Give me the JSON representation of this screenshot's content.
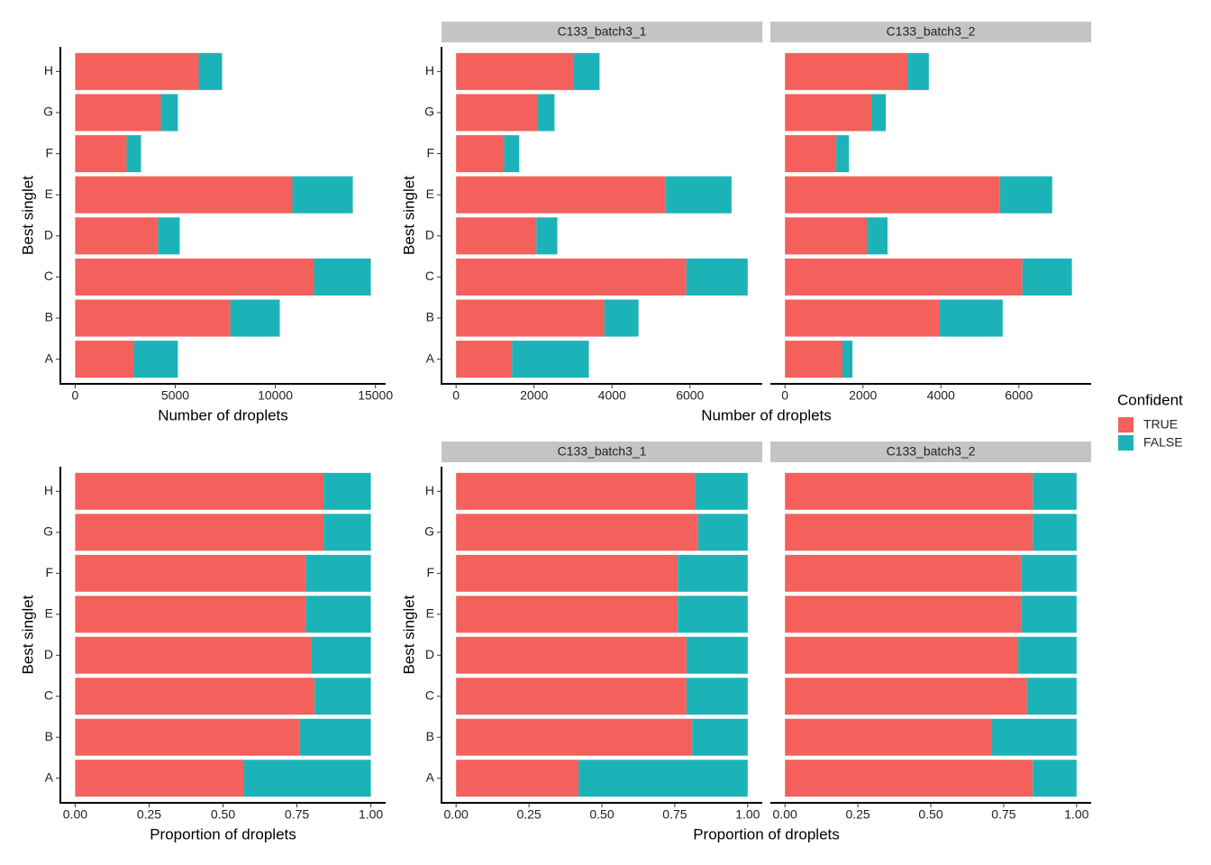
{
  "chart_data": [
    {
      "type": "bar",
      "orientation": "horizontal",
      "stacked": true,
      "categories": [
        "A",
        "B",
        "C",
        "D",
        "E",
        "F",
        "G",
        "H"
      ],
      "series": [
        {
          "name": "TRUE",
          "color": "#f4605c",
          "values": [
            2930,
            7750,
            11930,
            4140,
            10850,
            2570,
            4280,
            6170
          ]
        },
        {
          "name": "FALSE",
          "color": "#1cb3b8",
          "values": [
            2200,
            2470,
            2840,
            1080,
            3020,
            720,
            850,
            1170
          ]
        }
      ],
      "xlabel": "Number of droplets",
      "ylabel": "Best singlet",
      "xlim": [
        -740,
        15510
      ],
      "xticks": [
        0,
        5000,
        10000,
        15000
      ]
    },
    {
      "type": "bar",
      "orientation": "horizontal",
      "stacked": true,
      "categories": [
        "A",
        "B",
        "C",
        "D",
        "E",
        "F",
        "G",
        "H"
      ],
      "facets": [
        {
          "title": "C133_batch3_1",
          "series": [
            {
              "name": "TRUE",
              "color": "#f4605c",
              "values": [
                1435,
                3800,
                5905,
                2060,
                5375,
                1230,
                2085,
                3010
              ]
            },
            {
              "name": "FALSE",
              "color": "#1cb3b8",
              "values": [
                1970,
                880,
                1575,
                535,
                1690,
                390,
                440,
                670
              ]
            }
          ]
        },
        {
          "title": "C133_batch3_2",
          "series": [
            {
              "name": "TRUE",
              "color": "#f4605c",
              "values": [
                1475,
                3970,
                6090,
                2100,
                5515,
                1315,
                2215,
                3140
              ]
            },
            {
              "name": "FALSE",
              "color": "#1cb3b8",
              "values": [
                255,
                1615,
                1270,
                530,
                1340,
                325,
                370,
                550
              ]
            }
          ]
        }
      ],
      "xlabel": "Number of droplets",
      "ylabel": "Best singlet",
      "xlim": [
        -374,
        7854
      ],
      "xticks": [
        0,
        2000,
        4000,
        6000
      ]
    },
    {
      "type": "bar",
      "orientation": "horizontal",
      "stacked": true,
      "categories": [
        "A",
        "B",
        "C",
        "D",
        "E",
        "F",
        "G",
        "H"
      ],
      "series": [
        {
          "name": "TRUE",
          "color": "#f4605c",
          "values": [
            0.57,
            0.76,
            0.81,
            0.8,
            0.78,
            0.78,
            0.84,
            0.84
          ]
        },
        {
          "name": "FALSE",
          "color": "#1cb3b8",
          "values": [
            0.43,
            0.24,
            0.19,
            0.2,
            0.22,
            0.22,
            0.16,
            0.16
          ]
        }
      ],
      "xlabel": "Proportion of droplets",
      "ylabel": "Best singlet",
      "xlim": [
        -0.05,
        1.05
      ],
      "xticks": [
        {
          "value": 0,
          "label": "0.00"
        },
        {
          "value": 0.25,
          "label": "0.25"
        },
        {
          "value": 0.5,
          "label": "0.50"
        },
        {
          "value": 0.75,
          "label": "0.75"
        },
        {
          "value": 1,
          "label": "1.00"
        }
      ]
    },
    {
      "type": "bar",
      "orientation": "horizontal",
      "stacked": true,
      "categories": [
        "A",
        "B",
        "C",
        "D",
        "E",
        "F",
        "G",
        "H"
      ],
      "facets": [
        {
          "title": "C133_batch3_1",
          "series": [
            {
              "name": "TRUE",
              "color": "#f4605c",
              "values": [
                0.42,
                0.81,
                0.79,
                0.79,
                0.76,
                0.76,
                0.83,
                0.82
              ]
            },
            {
              "name": "FALSE",
              "color": "#1cb3b8",
              "values": [
                0.58,
                0.19,
                0.21,
                0.21,
                0.24,
                0.24,
                0.17,
                0.18
              ]
            }
          ]
        },
        {
          "title": "C133_batch3_2",
          "series": [
            {
              "name": "TRUE",
              "color": "#f4605c",
              "values": [
                0.85,
                0.71,
                0.83,
                0.8,
                0.81,
                0.81,
                0.85,
                0.85
              ]
            },
            {
              "name": "FALSE",
              "color": "#1cb3b8",
              "values": [
                0.15,
                0.29,
                0.17,
                0.2,
                0.19,
                0.19,
                0.15,
                0.15
              ]
            }
          ]
        }
      ],
      "xlabel": "Proportion of droplets",
      "ylabel": "Best singlet",
      "xlim": [
        -0.05,
        1.05
      ],
      "xticks": [
        {
          "value": 0,
          "label": "0.00"
        },
        {
          "value": 0.25,
          "label": "0.25"
        },
        {
          "value": 0.5,
          "label": "0.50"
        },
        {
          "value": 0.75,
          "label": "0.75"
        },
        {
          "value": 1,
          "label": "1.00"
        }
      ]
    }
  ],
  "legend": {
    "title": "Confident",
    "position": "right"
  }
}
